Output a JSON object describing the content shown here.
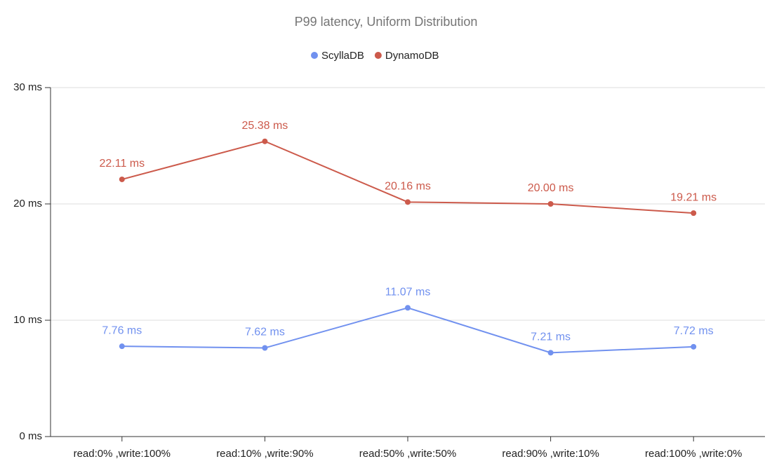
{
  "chart_data": {
    "type": "line",
    "title": "P99 latency, Uniform Distribution",
    "categories": [
      "read:0% ,write:100%",
      "read:10% ,write:90%",
      "read:50% ,write:50%",
      "read:90% ,write:10%",
      "read:100% ,write:0%"
    ],
    "series": [
      {
        "name": "ScyllaDB",
        "color": "#7191ef",
        "values": [
          7.76,
          7.62,
          11.07,
          7.21,
          7.72
        ],
        "value_labels": [
          "7.76 ms",
          "7.62 ms",
          "11.07 ms",
          "7.21 ms",
          "7.72 ms"
        ]
      },
      {
        "name": "DynamoDB",
        "color": "#cc5a4b",
        "values": [
          22.11,
          25.38,
          20.16,
          20.0,
          19.21
        ],
        "value_labels": [
          "22.11 ms",
          "25.38 ms",
          "20.16 ms",
          "20.00 ms",
          "19.21 ms"
        ]
      }
    ],
    "ylim": [
      0,
      30
    ],
    "yticks": [
      {
        "value": 0,
        "label": "0 ms"
      },
      {
        "value": 10,
        "label": "10 ms"
      },
      {
        "value": 20,
        "label": "20 ms"
      },
      {
        "value": 30,
        "label": "30 ms"
      }
    ],
    "grid": true,
    "legend": "top"
  }
}
